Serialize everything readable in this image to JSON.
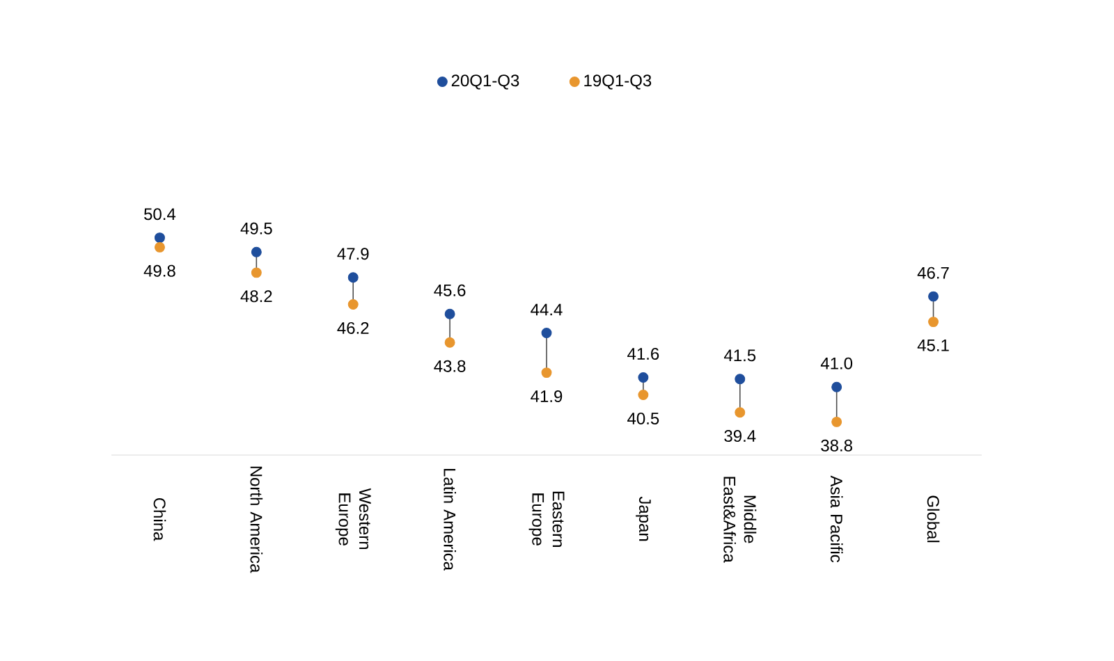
{
  "chart_data": {
    "type": "scatter",
    "categories": [
      "China",
      "North America",
      "Western Europe",
      "Latin America",
      "Eastern Europe",
      "Japan",
      "Middle East&Africa",
      "Asia Pacific",
      "Global"
    ],
    "series": [
      {
        "name": "20Q1-Q3",
        "color": "#1f4e9c",
        "values": [
          50.4,
          49.5,
          47.9,
          45.6,
          44.4,
          41.6,
          41.5,
          41.0,
          46.7
        ],
        "value_labels": [
          "50.4",
          "49.5",
          "47.9",
          "45.6",
          "44.4",
          "41.6",
          "41.5",
          "41.0",
          "46.7"
        ]
      },
      {
        "name": "19Q1-Q3",
        "color": "#e8962e",
        "values": [
          49.8,
          48.2,
          46.2,
          43.8,
          41.9,
          40.5,
          39.4,
          38.8,
          45.1
        ],
        "value_labels": [
          "49.8",
          "48.2",
          "46.2",
          "43.8",
          "41.9",
          "40.5",
          "39.4",
          "38.8",
          "45.1"
        ]
      }
    ],
    "marker": "circle",
    "legend": "top"
  }
}
